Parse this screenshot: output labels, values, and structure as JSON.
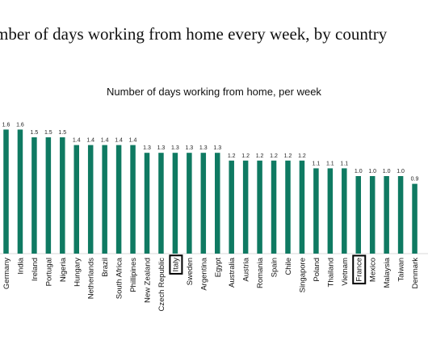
{
  "headline": "mber of  days working from home every week, by country",
  "chart_data": {
    "type": "bar",
    "title": "Number of days working from home, per week",
    "categories": [
      "Germany",
      "India",
      "Ireland",
      "Portugal",
      "Nigeria",
      "Hungary",
      "Netherlands",
      "Brazil",
      "South Africa",
      "Phillipines",
      "New Zealand",
      "Czech Republic",
      "Italy",
      "Sweden",
      "Argentina",
      "Egypt",
      "Australia",
      "Austria",
      "Romania",
      "Spain",
      "Chile",
      "Singapore",
      "Poland",
      "Thailand",
      "Vietnam",
      "France",
      "Mexico",
      "Malaysia",
      "Taiwan",
      "Denmark"
    ],
    "values": [
      1.6,
      1.6,
      1.5,
      1.5,
      1.5,
      1.4,
      1.4,
      1.4,
      1.4,
      1.4,
      1.3,
      1.3,
      1.3,
      1.3,
      1.3,
      1.3,
      1.2,
      1.2,
      1.2,
      1.2,
      1.2,
      1.2,
      1.1,
      1.1,
      1.1,
      1.0,
      1.0,
      1.0,
      1.0,
      0.9
    ],
    "value_labels": [
      "1.6",
      "1.6",
      "1.5",
      "1.5",
      "1.5",
      "1.4",
      "1.4",
      "1.4",
      "1.4",
      "1.4",
      "1.3",
      "1.3",
      "1.3",
      "1.3",
      "1.3",
      "1.3",
      "1.2",
      "1.2",
      "1.2",
      "1.2",
      "1.2",
      "1.2",
      "1.1",
      "1.1",
      "1.1",
      "1.0",
      "1.0",
      "1.0",
      "1.0",
      "0.9"
    ],
    "highlighted": [
      "Italy",
      "France"
    ],
    "bar_color": "#0f7a62",
    "ylim": [
      0,
      1.6
    ],
    "grid": false,
    "legend": "none"
  }
}
